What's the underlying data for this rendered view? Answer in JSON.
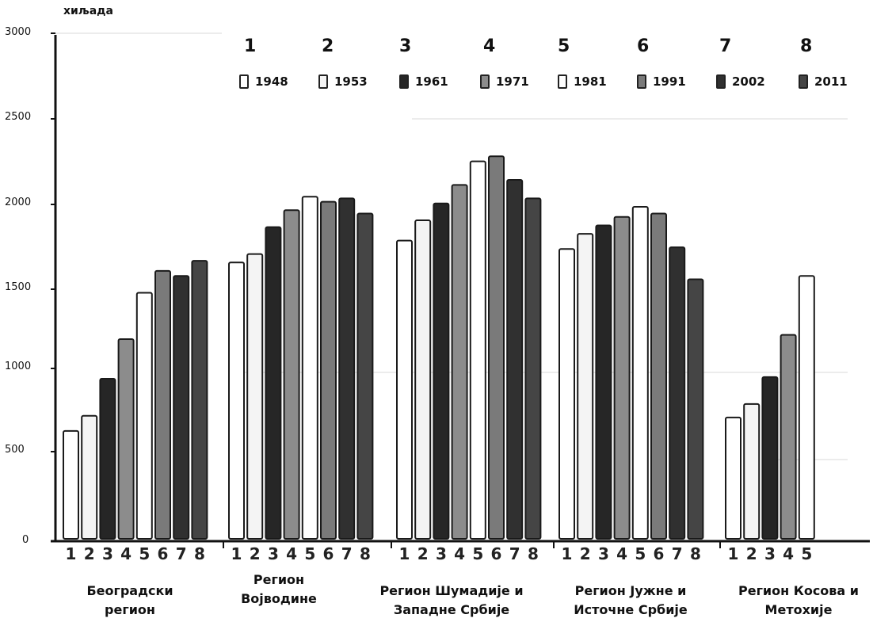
{
  "chart_data": {
    "type": "bar",
    "unit_label": "хиљада",
    "y_ticks": [
      "3000",
      "2500",
      "2000",
      "1500",
      "1000",
      "500",
      "0"
    ],
    "ylim": [
      0,
      3000
    ],
    "legend": [
      {
        "num": "1",
        "label": "1948",
        "color": "#ffffff"
      },
      {
        "num": "2",
        "label": "1953",
        "color": "#f4f4f4"
      },
      {
        "num": "3",
        "label": "1961",
        "color": "#262626"
      },
      {
        "num": "4",
        "label": "1971",
        "color": "#8c8c8c"
      },
      {
        "num": "5",
        "label": "1981",
        "color": "#ffffff"
      },
      {
        "num": "6",
        "label": "1991",
        "color": "#7a7a7a"
      },
      {
        "num": "7",
        "label": "2002",
        "color": "#303030"
      },
      {
        "num": "8",
        "label": "2011",
        "color": "#454545"
      }
    ],
    "legend_position": "top-right",
    "groups": [
      {
        "name_lines": [
          "Београдски",
          "регион"
        ],
        "position_labels": [
          "1",
          "2",
          "3",
          "4",
          "5",
          "6",
          "7",
          "8"
        ],
        "values": [
          640,
          730,
          950,
          1185,
          1460,
          1590,
          1560,
          1650
        ]
      },
      {
        "name_lines": [
          "Регион",
          "Војводине"
        ],
        "position_labels": [
          "1",
          "2",
          "3",
          "4",
          "5",
          "6",
          "7",
          "8"
        ],
        "values": [
          1640,
          1690,
          1850,
          1950,
          2030,
          2000,
          2020,
          1930
        ]
      },
      {
        "name_lines": [
          "Регион Шумадије и",
          "Западне Србије"
        ],
        "position_labels": [
          "1",
          "2",
          "3",
          "4",
          "5",
          "6",
          "7",
          "8"
        ],
        "values": [
          1770,
          1890,
          1990,
          2100,
          2240,
          2270,
          2130,
          2020
        ]
      },
      {
        "name_lines": [
          "Регион Јужне и",
          "Источне Србије"
        ],
        "position_labels": [
          "1",
          "2",
          "3",
          "4",
          "5",
          "6",
          "7",
          "8"
        ],
        "values": [
          1720,
          1810,
          1860,
          1910,
          1970,
          1930,
          1730,
          1540
        ]
      },
      {
        "name_lines": [
          "Регион Косова и",
          "Метохије"
        ],
        "position_labels": [
          "1",
          "2",
          "3",
          "4",
          "5"
        ],
        "values": [
          720,
          800,
          960,
          1210,
          1560
        ]
      }
    ],
    "grid": false
  }
}
